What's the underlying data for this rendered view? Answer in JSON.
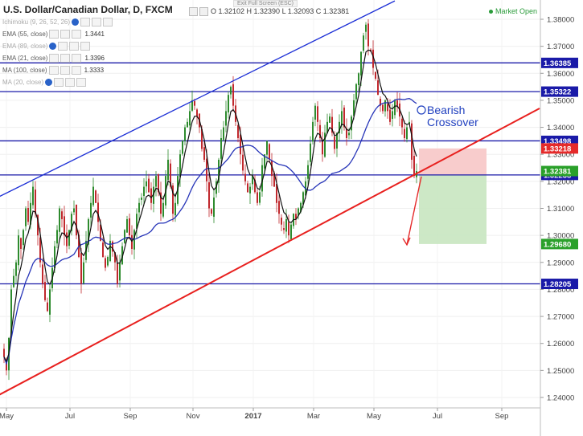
{
  "header": {
    "symbol": "U.S. Dollar/Canadian Dollar, D, FXCM",
    "ohlc": "O 1.32102  H 1.32390  L 1.32093  C 1.32381",
    "market_status": "Market Open",
    "exit_fullscreen": "Exit Full Screen (ESC)"
  },
  "indicators": [
    {
      "label": "Ichimoku (9, 26, 52, 26)",
      "value": "",
      "faded": true
    },
    {
      "label": "EMA (55, close)",
      "value": "1.3441",
      "faded": false
    },
    {
      "label": "EMA (89, close)",
      "value": "",
      "faded": true
    },
    {
      "label": "EMA (21, close)",
      "value": "1.3396",
      "faded": false
    },
    {
      "label": "MA (100, close)",
      "value": "1.3333",
      "faded": false
    },
    {
      "label": "MA (20, close)",
      "value": "",
      "faded": true
    }
  ],
  "annotation": {
    "line1": "Bearish",
    "line2": "Crossover"
  },
  "colors": {
    "candle_up": "#2e8b2e",
    "candle_down": "#c0282d",
    "horizontal_levels": "#1a1aa8",
    "trendline": "#e8201e",
    "channel": "#1c2fd6",
    "ema_21": "#111111",
    "ma_100": "#2634b8",
    "target_zone": "#c8e6c0",
    "stop_zone": "#f7c6c6"
  },
  "chart_data": {
    "type": "line",
    "title": "U.S. Dollar/Canadian Dollar, D, FXCM",
    "xlabel": "",
    "ylabel": "",
    "x_ticks": [
      "May",
      "Jul",
      "Sep",
      "Nov",
      "2017",
      "Mar",
      "May",
      "Jul",
      "Sep"
    ],
    "y_ticks": [
      "1.38000",
      "1.37000",
      "1.36000",
      "1.35000",
      "1.34000",
      "1.33000",
      "1.32000",
      "1.31000",
      "1.30000",
      "1.29000",
      "1.28000",
      "1.27000",
      "1.26000",
      "1.25000",
      "1.24000"
    ],
    "ylim": [
      1.238,
      1.385
    ],
    "levels": [
      {
        "price": 1.36385,
        "label": "1.36385",
        "color": "#1a1aa8"
      },
      {
        "price": 1.35322,
        "label": "1.35322",
        "color": "#1a1aa8"
      },
      {
        "price": 1.33498,
        "label": "1.33498",
        "color": "#1a1aa8"
      },
      {
        "price": 1.32238,
        "label": "1.32238",
        "color": "#1a1aa8"
      },
      {
        "price": 1.28205,
        "label": "1.28205",
        "color": "#1a1aa8"
      }
    ],
    "price_labels": [
      {
        "price": 1.33218,
        "label": "1.33218",
        "color": "#e52a2a"
      },
      {
        "price": 1.32381,
        "label": "1.32381",
        "color": "#2aa02a"
      },
      {
        "price": 1.2968,
        "label": "1.29680",
        "color": "#2aa02a"
      }
    ],
    "trendlines": [
      {
        "name": "support",
        "from": {
          "i": -3,
          "p": 1.2405
        },
        "to": {
          "i": 222,
          "p": 1.347
        }
      },
      {
        "name": "channel",
        "from": {
          "i": -3,
          "p": 1.3139
        },
        "to": {
          "i": 162,
          "p": 1.3868
        }
      }
    ],
    "zones": [
      {
        "type": "stop",
        "i_from": 172,
        "i_to": 200,
        "p_from": 1.32238,
        "p_to": 1.33218
      },
      {
        "type": "target",
        "i_from": 172,
        "i_to": 200,
        "p_from": 1.2968,
        "p_to": 1.32238
      }
    ],
    "arrow": {
      "from": {
        "i": 173,
        "p": 1.3218
      },
      "to": {
        "i": 167,
        "p": 1.2965
      }
    },
    "close": [
      1.255,
      1.25,
      1.262,
      1.28,
      1.285,
      1.29,
      1.3,
      1.295,
      1.302,
      1.31,
      1.305,
      1.312,
      1.318,
      1.308,
      1.3,
      1.29,
      1.282,
      1.276,
      1.272,
      1.28,
      1.288,
      1.296,
      1.302,
      1.31,
      1.306,
      1.3,
      1.296,
      1.302,
      1.308,
      1.31,
      1.3,
      1.292,
      1.282,
      1.29,
      1.298,
      1.306,
      1.312,
      1.318,
      1.312,
      1.305,
      1.298,
      1.292,
      1.288,
      1.292,
      1.298,
      1.294,
      1.29,
      1.282,
      1.29,
      1.296,
      1.302,
      1.306,
      1.3,
      1.295,
      1.302,
      1.308,
      1.312,
      1.314,
      1.318,
      1.32,
      1.316,
      1.312,
      1.318,
      1.322,
      1.316,
      1.308,
      1.312,
      1.322,
      1.328,
      1.318,
      1.308,
      1.312,
      1.322,
      1.33,
      1.335,
      1.34,
      1.342,
      1.346,
      1.35,
      1.348,
      1.344,
      1.34,
      1.332,
      1.328,
      1.32,
      1.31,
      1.308,
      1.314,
      1.32,
      1.328,
      1.336,
      1.34,
      1.346,
      1.352,
      1.355,
      1.348,
      1.342,
      1.336,
      1.33,
      1.324,
      1.32,
      1.316,
      1.318,
      1.322,
      1.316,
      1.312,
      1.316,
      1.326,
      1.33,
      1.335,
      1.328,
      1.322,
      1.318,
      1.312,
      1.308,
      1.304,
      1.302,
      1.306,
      1.3,
      1.304,
      1.308,
      1.306,
      1.31,
      1.312,
      1.316,
      1.32,
      1.326,
      1.334,
      1.342,
      1.348,
      1.342,
      1.336,
      1.33,
      1.338,
      1.342,
      1.344,
      1.338,
      1.332,
      1.338,
      1.342,
      1.346,
      1.34,
      1.336,
      1.338,
      1.344,
      1.35,
      1.356,
      1.36,
      1.368,
      1.374,
      1.378,
      1.37,
      1.368,
      1.362,
      1.358,
      1.352,
      1.348,
      1.346,
      1.35,
      1.346,
      1.342,
      1.346,
      1.35,
      1.348,
      1.344,
      1.34,
      1.336,
      1.34,
      1.342,
      1.328,
      1.322,
      1.3238
    ]
  }
}
